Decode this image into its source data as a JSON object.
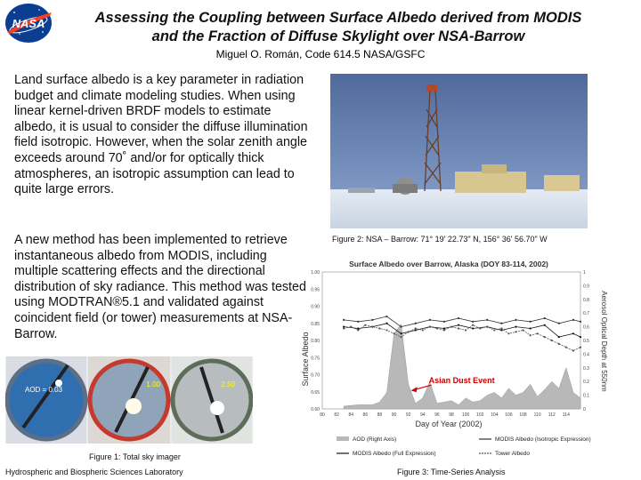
{
  "header": {
    "logo_text": "NASA",
    "title_line1": "Assessing the Coupling between Surface Albedo derived from MODIS",
    "title_line2": "and the Fraction of Diffuse Skylight over NSA-Barrow",
    "author": "Miguel O. Román, Code 614.5  NASA/GSFC"
  },
  "text": {
    "paragraph1": "Land surface albedo is a key parameter in radiation budget and climate modeling studies. When using linear kernel-driven BRDF models to estimate albedo, it is usual to consider the diffuse illumination field isotropic. However, when the solar zenith angle exceeds around 70˚ and/or for optically thick atmospheres, an isotropic assumption can lead to quite large errors.",
    "paragraph2": "A new method has been implemented to retrieve instantaneous albedo from MODIS, including multiple scattering effects and the directional distribution of sky radiance. This method was tested using MODTRAN®5.1 and validated against coincident field (or tower)  measurements at NSA-Barrow."
  },
  "sky_images": [
    {
      "label": "AOD = 0.03",
      "ring_color": "#5c6f86"
    },
    {
      "label": "1.00",
      "ring_color": "#c43a2e"
    },
    {
      "label": "2.50",
      "ring_color": "#5d6d5a"
    }
  ],
  "captions": {
    "figure1": "Figure 1: Total sky imager",
    "figure2": "Figure 2: NSA – Barrow: 71° 19' 22.73\" N, 156° 36' 56.70\" W",
    "figure3": "Figure 3: Time-Series Analysis"
  },
  "footer": {
    "lab": "Hydrospheric and Biospheric Sciences Laboratory"
  },
  "chart_data": {
    "type": "line",
    "title": "Surface Albedo over Barrow, Alaska (DOY 83-114, 2002)",
    "xlabel": "Day of Year (2002)",
    "ylabel": "Surface Albedo",
    "y2label": "Aerosol Optical Depth at 550nm",
    "xlim": [
      83,
      116
    ],
    "ylim": [
      0.6,
      1.0
    ],
    "y2lim": [
      0,
      1
    ],
    "xticks": [
      "80",
      "82",
      "84",
      "86",
      "88",
      "90",
      "92",
      "94",
      "96",
      "98",
      "100",
      "102",
      "104",
      "106",
      "108",
      "110",
      "112",
      "114"
    ],
    "yticks": [
      "0.60",
      "0.65",
      "0.70",
      "0.75",
      "0.80",
      "0.85",
      "0.90",
      "0.95",
      "1.00"
    ],
    "y2ticks": [
      "0",
      "0.1",
      "0.2",
      "0.3",
      "0.4",
      "0.5",
      "0.6",
      "0.7",
      "0.8",
      "0.9",
      "1"
    ],
    "annotation": "Asian Dust Event",
    "legend_position": "bottom",
    "series": [
      {
        "name": "AOD (Right Axis)",
        "axis": "right",
        "color": "#b8b8b8",
        "x": [
          83,
          85,
          87,
          88,
          89,
          90,
          91,
          92,
          93,
          94,
          95,
          96,
          97,
          98,
          99,
          100,
          101,
          102,
          103,
          104,
          105,
          106,
          107,
          108,
          109,
          110,
          111,
          112,
          113,
          114,
          115,
          116
        ],
        "y": [
          0.02,
          0.03,
          0.03,
          0.05,
          0.12,
          0.55,
          0.62,
          0.18,
          0.04,
          0.08,
          0.2,
          0.04,
          0.05,
          0.06,
          0.03,
          0.08,
          0.05,
          0.06,
          0.1,
          0.12,
          0.08,
          0.15,
          0.1,
          0.12,
          0.18,
          0.09,
          0.14,
          0.2,
          0.15,
          0.3,
          0.12,
          0.08
        ]
      },
      {
        "name": "MODIS Albedo (Isotropic Expression)",
        "axis": "left",
        "color": "#333333",
        "x": [
          83,
          85,
          87,
          89,
          91,
          93,
          95,
          97,
          99,
          101,
          103,
          105,
          107,
          109,
          111,
          113,
          115,
          116
        ],
        "y": [
          0.86,
          0.855,
          0.86,
          0.87,
          0.84,
          0.85,
          0.86,
          0.855,
          0.865,
          0.855,
          0.86,
          0.85,
          0.86,
          0.855,
          0.865,
          0.85,
          0.86,
          0.855
        ]
      },
      {
        "name": "MODIS Albedo (Full Expression)",
        "axis": "left",
        "color": "#111111",
        "x": [
          83,
          85,
          87,
          89,
          91,
          93,
          95,
          97,
          99,
          101,
          103,
          105,
          107,
          109,
          111,
          113,
          115,
          116
        ],
        "y": [
          0.84,
          0.835,
          0.84,
          0.85,
          0.82,
          0.83,
          0.84,
          0.835,
          0.845,
          0.835,
          0.84,
          0.83,
          0.84,
          0.835,
          0.845,
          0.81,
          0.82,
          0.81
        ]
      },
      {
        "name": "Tower Albedo",
        "axis": "left",
        "color": "#555555",
        "x": [
          83,
          84,
          85,
          86,
          87,
          88,
          89,
          90,
          91,
          92,
          93,
          94,
          95,
          96,
          97,
          98,
          99,
          100,
          101,
          102,
          103,
          104,
          105,
          106,
          107,
          108,
          109,
          110,
          111,
          112,
          113,
          114,
          115,
          116
        ],
        "y": [
          0.835,
          0.84,
          0.83,
          0.845,
          0.84,
          0.835,
          0.83,
          0.82,
          0.81,
          0.825,
          0.835,
          0.83,
          0.84,
          0.835,
          0.83,
          0.84,
          0.835,
          0.83,
          0.845,
          0.835,
          0.84,
          0.83,
          0.835,
          0.82,
          0.825,
          0.83,
          0.815,
          0.82,
          0.81,
          0.8,
          0.79,
          0.78,
          0.77,
          0.78
        ]
      }
    ]
  }
}
